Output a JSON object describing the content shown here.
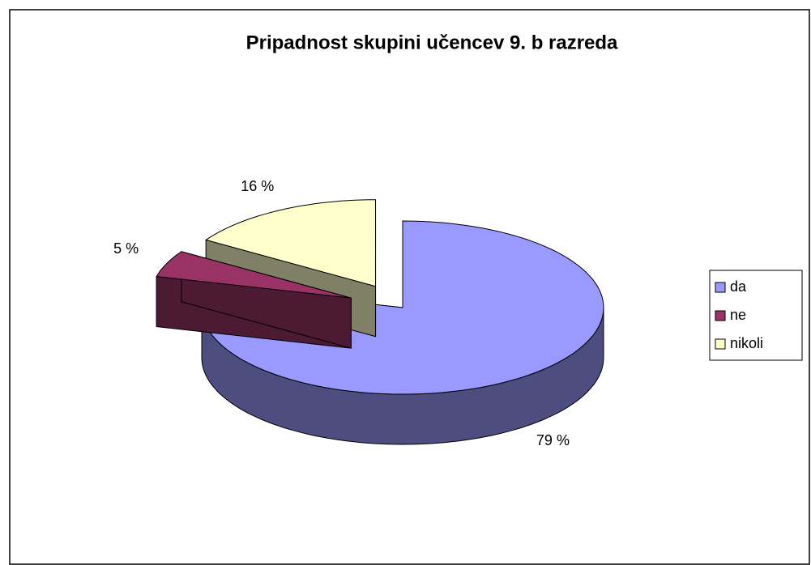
{
  "chart_data": {
    "type": "pie3d",
    "title": "Pripadnost skupini učencev 9. b razreda",
    "categories": [
      "da",
      "ne",
      "nikoli"
    ],
    "values": [
      79,
      5,
      16
    ],
    "value_labels": [
      "79 %",
      "5 %",
      "16 %"
    ],
    "colors": [
      "#9999ff",
      "#993366",
      "#ffffcc"
    ],
    "legend": "right"
  }
}
